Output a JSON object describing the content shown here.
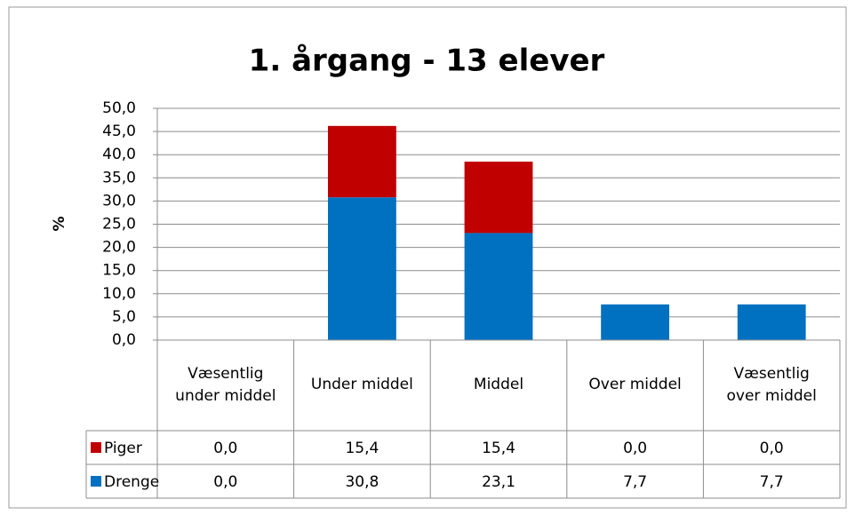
{
  "chart_data": {
    "type": "stacked_bar",
    "title": "1. årgang - 13 elever",
    "y_label": "%",
    "categories": [
      "Væsentlig under middel",
      "Under middel",
      "Middel",
      "Over middel",
      "Væsentlig over middel"
    ],
    "series": [
      {
        "name": "Drenge",
        "color": "#0070c0",
        "values": [
          0.0,
          30.8,
          23.1,
          7.7,
          7.7
        ],
        "value_labels": [
          "0,0",
          "30,8",
          "23,1",
          "7,7",
          "7,7"
        ]
      },
      {
        "name": "Piger",
        "color": "#c00000",
        "values": [
          0.0,
          15.4,
          15.4,
          0.0,
          0.0
        ],
        "value_labels": [
          "0,0",
          "15,4",
          "15,4",
          "0,0",
          "0,0"
        ]
      }
    ],
    "ylim": [
      0,
      50
    ],
    "yticks": [
      {
        "value": 0,
        "label": "0,0"
      },
      {
        "value": 5,
        "label": "5,0"
      },
      {
        "value": 10,
        "label": "10,0"
      },
      {
        "value": 15,
        "label": "15,0"
      },
      {
        "value": 20,
        "label": "20,0"
      },
      {
        "value": 25,
        "label": "25,0"
      },
      {
        "value": 30,
        "label": "30,0"
      },
      {
        "value": 35,
        "label": "35,0"
      },
      {
        "value": 40,
        "label": "40,0"
      },
      {
        "value": 45,
        "label": "45,0"
      },
      {
        "value": 50,
        "label": "50,0"
      }
    ],
    "grid": true,
    "data_table": true
  }
}
